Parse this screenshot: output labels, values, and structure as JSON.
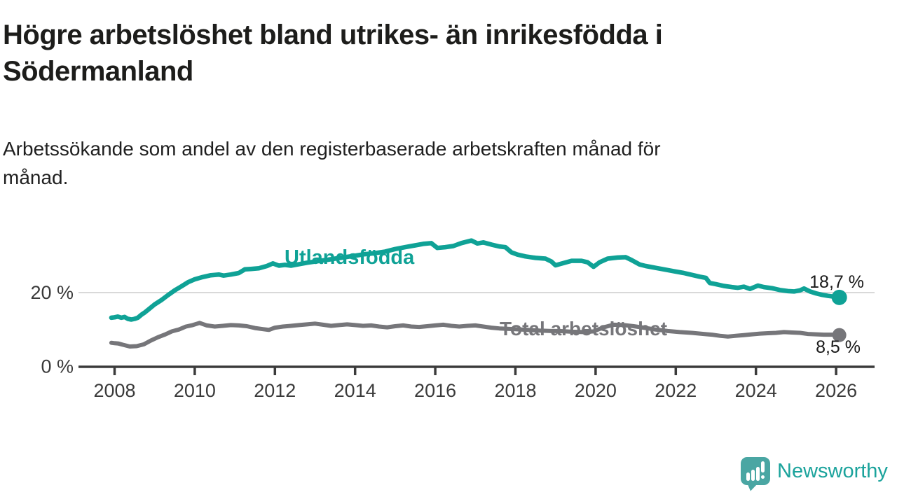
{
  "header": {
    "title_lines": [
      "Högre arbetslöshet bland utrikes- än inrikesfödda i",
      "Södermanland"
    ],
    "subtitle_lines": [
      "Arbetssökande som andel av den registerbaserade arbetskraften månad för",
      "månad."
    ]
  },
  "chart_data": {
    "type": "line",
    "title": "Högre arbetslöshet bland utrikes- än inrikesfödda i Södermanland",
    "subtitle": "Arbetssökande som andel av den registerbaserade arbetskraften månad för månad.",
    "unit": "%",
    "xlabel": "",
    "ylabel": "",
    "x_range": [
      2007.9,
      2026.95
    ],
    "ylim": [
      0,
      38
    ],
    "grid": "y-at-20-only",
    "legend_position": "inline-labels",
    "x_ticks": [
      2008,
      2010,
      2012,
      2014,
      2016,
      2018,
      2020,
      2022,
      2024,
      2026
    ],
    "y_ticks": [
      {
        "value": 0,
        "label": "0 %"
      },
      {
        "value": 20,
        "label": "20 %"
      }
    ],
    "axis_color": "#3b3b3b",
    "grid_color": "#d9d9d9",
    "series": [
      {
        "name": "Utlandsfödda",
        "color": "#0fa296",
        "end_label": "18,7 %",
        "end_value": 18.7,
        "points": [
          [
            2007.92,
            13.2
          ],
          [
            2008.0,
            13.3
          ],
          [
            2008.08,
            13.5
          ],
          [
            2008.17,
            13.2
          ],
          [
            2008.25,
            13.4
          ],
          [
            2008.33,
            12.9
          ],
          [
            2008.42,
            12.7
          ],
          [
            2008.5,
            12.9
          ],
          [
            2008.58,
            13.2
          ],
          [
            2008.67,
            14.0
          ],
          [
            2008.75,
            14.6
          ],
          [
            2008.83,
            15.3
          ],
          [
            2008.92,
            16.1
          ],
          [
            2009.0,
            16.8
          ],
          [
            2009.17,
            18.0
          ],
          [
            2009.33,
            19.3
          ],
          [
            2009.5,
            20.6
          ],
          [
            2009.67,
            21.7
          ],
          [
            2009.83,
            22.8
          ],
          [
            2010.0,
            23.6
          ],
          [
            2010.2,
            24.2
          ],
          [
            2010.4,
            24.7
          ],
          [
            2010.6,
            24.9
          ],
          [
            2010.72,
            24.6
          ],
          [
            2010.9,
            24.9
          ],
          [
            2011.1,
            25.3
          ],
          [
            2011.25,
            26.3
          ],
          [
            2011.4,
            26.4
          ],
          [
            2011.6,
            26.6
          ],
          [
            2011.8,
            27.2
          ],
          [
            2011.95,
            27.9
          ],
          [
            2012.1,
            27.3
          ],
          [
            2012.25,
            27.5
          ],
          [
            2012.4,
            27.3
          ],
          [
            2012.6,
            27.7
          ],
          [
            2012.8,
            28.1
          ],
          [
            2013.0,
            28.4
          ],
          [
            2013.25,
            28.8
          ],
          [
            2013.5,
            29.2
          ],
          [
            2013.75,
            29.6
          ],
          [
            2014.0,
            30.0
          ],
          [
            2014.25,
            30.4
          ],
          [
            2014.5,
            30.7
          ],
          [
            2014.75,
            31.1
          ],
          [
            2015.0,
            31.8
          ],
          [
            2015.25,
            32.3
          ],
          [
            2015.5,
            32.8
          ],
          [
            2015.7,
            33.2
          ],
          [
            2015.9,
            33.4
          ],
          [
            2016.05,
            32.1
          ],
          [
            2016.25,
            32.3
          ],
          [
            2016.45,
            32.6
          ],
          [
            2016.65,
            33.4
          ],
          [
            2016.9,
            34.1
          ],
          [
            2017.05,
            33.3
          ],
          [
            2017.2,
            33.6
          ],
          [
            2017.4,
            33.0
          ],
          [
            2017.6,
            32.5
          ],
          [
            2017.75,
            32.3
          ],
          [
            2017.9,
            30.9
          ],
          [
            2018.05,
            30.3
          ],
          [
            2018.25,
            29.8
          ],
          [
            2018.5,
            29.4
          ],
          [
            2018.75,
            29.2
          ],
          [
            2018.9,
            28.4
          ],
          [
            2019.0,
            27.4
          ],
          [
            2019.1,
            27.7
          ],
          [
            2019.4,
            28.6
          ],
          [
            2019.65,
            28.6
          ],
          [
            2019.8,
            28.2
          ],
          [
            2019.95,
            27.0
          ],
          [
            2020.1,
            28.2
          ],
          [
            2020.3,
            29.2
          ],
          [
            2020.55,
            29.5
          ],
          [
            2020.75,
            29.6
          ],
          [
            2020.9,
            28.8
          ],
          [
            2021.1,
            27.6
          ],
          [
            2021.25,
            27.2
          ],
          [
            2021.5,
            26.7
          ],
          [
            2021.75,
            26.2
          ],
          [
            2021.95,
            25.8
          ],
          [
            2022.2,
            25.3
          ],
          [
            2022.4,
            24.8
          ],
          [
            2022.6,
            24.3
          ],
          [
            2022.75,
            24.0
          ],
          [
            2022.85,
            22.6
          ],
          [
            2023.0,
            22.3
          ],
          [
            2023.2,
            21.8
          ],
          [
            2023.4,
            21.5
          ],
          [
            2023.55,
            21.3
          ],
          [
            2023.7,
            21.6
          ],
          [
            2023.85,
            21.0
          ],
          [
            2024.05,
            21.9
          ],
          [
            2024.2,
            21.5
          ],
          [
            2024.4,
            21.2
          ],
          [
            2024.6,
            20.7
          ],
          [
            2024.8,
            20.4
          ],
          [
            2024.95,
            20.3
          ],
          [
            2025.1,
            20.6
          ],
          [
            2025.2,
            21.1
          ],
          [
            2025.35,
            20.3
          ],
          [
            2025.5,
            19.8
          ],
          [
            2025.65,
            19.4
          ],
          [
            2025.8,
            19.1
          ],
          [
            2025.95,
            18.9
          ],
          [
            2026.08,
            18.7
          ]
        ]
      },
      {
        "name": "Total arbetslöshet",
        "color": "#76767a",
        "end_label": "8,5 %",
        "end_value": 8.5,
        "points": [
          [
            2007.92,
            6.4
          ],
          [
            2008.0,
            6.3
          ],
          [
            2008.1,
            6.2
          ],
          [
            2008.2,
            5.9
          ],
          [
            2008.38,
            5.4
          ],
          [
            2008.55,
            5.5
          ],
          [
            2008.73,
            6.0
          ],
          [
            2008.9,
            7.0
          ],
          [
            2009.08,
            7.9
          ],
          [
            2009.25,
            8.6
          ],
          [
            2009.43,
            9.5
          ],
          [
            2009.6,
            10.0
          ],
          [
            2009.78,
            10.8
          ],
          [
            2009.95,
            11.2
          ],
          [
            2010.12,
            11.8
          ],
          [
            2010.3,
            11.1
          ],
          [
            2010.5,
            10.8
          ],
          [
            2010.7,
            11.0
          ],
          [
            2010.9,
            11.2
          ],
          [
            2011.1,
            11.1
          ],
          [
            2011.3,
            10.9
          ],
          [
            2011.5,
            10.4
          ],
          [
            2011.7,
            10.1
          ],
          [
            2011.85,
            9.9
          ],
          [
            2012.0,
            10.5
          ],
          [
            2012.2,
            10.8
          ],
          [
            2012.4,
            11.0
          ],
          [
            2012.6,
            11.2
          ],
          [
            2012.8,
            11.4
          ],
          [
            2013.0,
            11.6
          ],
          [
            2013.2,
            11.3
          ],
          [
            2013.4,
            11.0
          ],
          [
            2013.6,
            11.2
          ],
          [
            2013.8,
            11.4
          ],
          [
            2014.0,
            11.2
          ],
          [
            2014.2,
            11.0
          ],
          [
            2014.4,
            11.1
          ],
          [
            2014.6,
            10.8
          ],
          [
            2014.8,
            10.6
          ],
          [
            2015.0,
            10.9
          ],
          [
            2015.2,
            11.1
          ],
          [
            2015.4,
            10.8
          ],
          [
            2015.6,
            10.7
          ],
          [
            2015.8,
            10.9
          ],
          [
            2016.0,
            11.1
          ],
          [
            2016.2,
            11.3
          ],
          [
            2016.4,
            11.0
          ],
          [
            2016.6,
            10.8
          ],
          [
            2016.8,
            11.0
          ],
          [
            2017.0,
            11.1
          ],
          [
            2017.2,
            10.8
          ],
          [
            2017.4,
            10.5
          ],
          [
            2017.6,
            10.3
          ],
          [
            2017.8,
            10.2
          ],
          [
            2018.0,
            10.1
          ],
          [
            2018.3,
            9.9
          ],
          [
            2018.6,
            9.7
          ],
          [
            2018.9,
            9.6
          ],
          [
            2019.1,
            9.6
          ],
          [
            2019.4,
            9.4
          ],
          [
            2019.7,
            9.3
          ],
          [
            2019.95,
            9.5
          ],
          [
            2020.2,
            10.6
          ],
          [
            2020.45,
            11.3
          ],
          [
            2020.7,
            11.2
          ],
          [
            2020.95,
            10.9
          ],
          [
            2021.2,
            10.5
          ],
          [
            2021.5,
            10.0
          ],
          [
            2021.8,
            9.6
          ],
          [
            2022.1,
            9.3
          ],
          [
            2022.4,
            9.1
          ],
          [
            2022.7,
            8.8
          ],
          [
            2022.9,
            8.6
          ],
          [
            2023.1,
            8.3
          ],
          [
            2023.3,
            8.1
          ],
          [
            2023.5,
            8.3
          ],
          [
            2023.7,
            8.5
          ],
          [
            2023.9,
            8.7
          ],
          [
            2024.1,
            8.9
          ],
          [
            2024.3,
            9.0
          ],
          [
            2024.5,
            9.1
          ],
          [
            2024.7,
            9.3
          ],
          [
            2024.9,
            9.2
          ],
          [
            2025.1,
            9.1
          ],
          [
            2025.3,
            8.8
          ],
          [
            2025.5,
            8.7
          ],
          [
            2025.7,
            8.6
          ],
          [
            2025.9,
            8.6
          ],
          [
            2026.08,
            8.5
          ]
        ]
      }
    ]
  },
  "footer": {
    "brand": "Newsworthy",
    "logo_color": "#4aa6a3",
    "logo_icon": "speech-bubble-bar-chart-exclamation"
  }
}
